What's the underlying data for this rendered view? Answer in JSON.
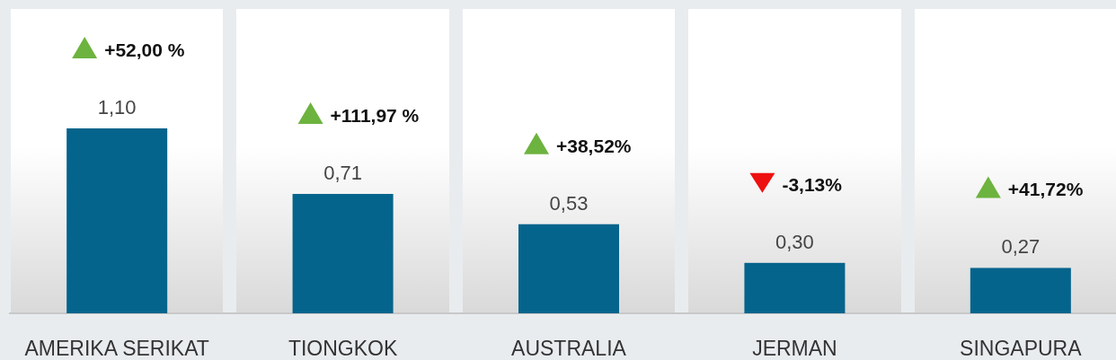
{
  "chart_data": {
    "type": "bar",
    "categories": [
      "AMERIKA SERIKAT",
      "TIONGKOK",
      "AUSTRALIA",
      "JERMAN",
      "SINGAPURA"
    ],
    "values": [
      1.1,
      0.71,
      0.53,
      0.3,
      0.27
    ],
    "value_labels": [
      "1,10",
      "0,71",
      "0,53",
      "0,30",
      "0,27"
    ],
    "color": "#05648c",
    "annotations": [
      "+52,00 %",
      "+111,97 %",
      "+38,52%",
      "-3,13%",
      "+41,72%"
    ]
  }
}
